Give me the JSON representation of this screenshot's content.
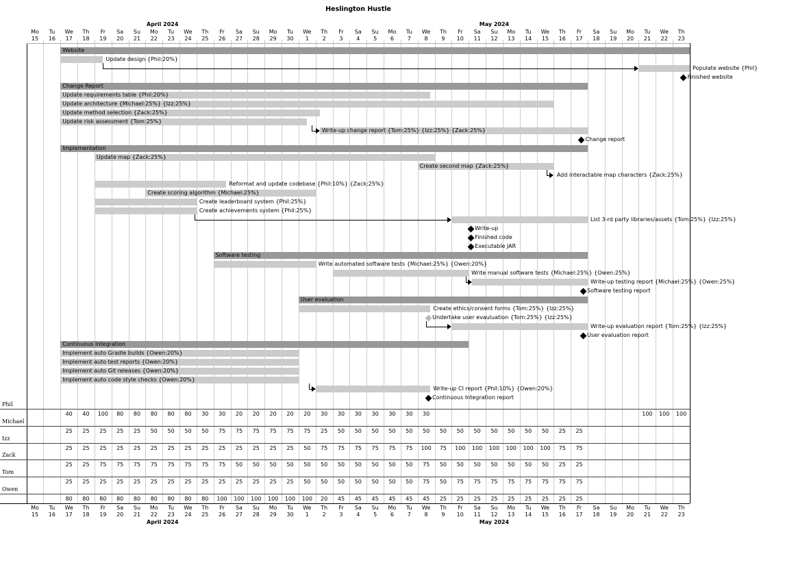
{
  "title": "Heslington Hustle",
  "months": {
    "april": "April 2024",
    "may": "May 2024"
  },
  "colors": {
    "summary_bar": "#989898",
    "task_bar": "#cbcbcb",
    "milestone": "#000000",
    "gray_milestone": "#b9b9b9",
    "grid_line": "#cccccc",
    "frame": "#000000",
    "header_top_rule": "#aaaaaa",
    "name_rule": "#444444"
  },
  "chart_data": {
    "type": "gantt",
    "title": "Heslington Hustle",
    "april_label": "April 2024",
    "may_label": "May 2024",
    "days": [
      {
        "d": "Mo",
        "n": "15"
      },
      {
        "d": "Tu",
        "n": "16"
      },
      {
        "d": "We",
        "n": "17"
      },
      {
        "d": "Th",
        "n": "18"
      },
      {
        "d": "Fr",
        "n": "19"
      },
      {
        "d": "Sa",
        "n": "20"
      },
      {
        "d": "Su",
        "n": "21"
      },
      {
        "d": "Mo",
        "n": "22"
      },
      {
        "d": "Tu",
        "n": "23"
      },
      {
        "d": "We",
        "n": "24"
      },
      {
        "d": "Th",
        "n": "25"
      },
      {
        "d": "Fr",
        "n": "26"
      },
      {
        "d": "Sa",
        "n": "27"
      },
      {
        "d": "Su",
        "n": "28"
      },
      {
        "d": "Mo",
        "n": "29"
      },
      {
        "d": "Tu",
        "n": "30"
      },
      {
        "d": "We",
        "n": "1"
      },
      {
        "d": "Th",
        "n": "2"
      },
      {
        "d": "Fr",
        "n": "3"
      },
      {
        "d": "Sa",
        "n": "4"
      },
      {
        "d": "Su",
        "n": "5"
      },
      {
        "d": "Mo",
        "n": "6"
      },
      {
        "d": "Tu",
        "n": "7"
      },
      {
        "d": "We",
        "n": "8"
      },
      {
        "d": "Th",
        "n": "9"
      },
      {
        "d": "Fr",
        "n": "10"
      },
      {
        "d": "Sa",
        "n": "11"
      },
      {
        "d": "Su",
        "n": "12"
      },
      {
        "d": "Mo",
        "n": "13"
      },
      {
        "d": "Tu",
        "n": "14"
      },
      {
        "d": "We",
        "n": "15"
      },
      {
        "d": "Th",
        "n": "16"
      },
      {
        "d": "Fr",
        "n": "17"
      },
      {
        "d": "Sa",
        "n": "18"
      },
      {
        "d": "Su",
        "n": "19"
      },
      {
        "d": "Mo",
        "n": "20"
      },
      {
        "d": "Tu",
        "n": "21"
      },
      {
        "d": "We",
        "n": "22"
      },
      {
        "d": "Th",
        "n": "23"
      }
    ],
    "rows": [
      {
        "t": "sum",
        "s": 2,
        "e": 39,
        "label": "Website",
        "lp": "in"
      },
      {
        "t": "task",
        "s": 2,
        "e": 4.5,
        "label": "Update design {Phil:20%}",
        "lp": "right"
      },
      {
        "t": "task",
        "s": 36,
        "e": 39,
        "label": "Populate website {Phil}",
        "lp": "right",
        "conn": [
          4.5,
          36
        ]
      },
      {
        "t": "ms",
        "m": 38.5,
        "label": "Finished website"
      },
      {
        "t": "sum",
        "s": 2,
        "e": 33,
        "label": "Change Report",
        "lp": "in"
      },
      {
        "t": "task",
        "s": 2,
        "e": 23.75,
        "label": "Update requirements table {Phil:20%}",
        "lp": "in"
      },
      {
        "t": "task",
        "s": 2,
        "e": 31,
        "label": "Update architecture {Michael:25%} {Izz:25%}",
        "lp": "in"
      },
      {
        "t": "task",
        "s": 2,
        "e": 17.25,
        "label": "Update method selection {Zack:25%}",
        "lp": "in"
      },
      {
        "t": "task",
        "s": 2,
        "e": 16.5,
        "label": "Update risk assessment {Tom:25%}",
        "lp": "in"
      },
      {
        "t": "task",
        "s": 17.25,
        "e": 33,
        "label": "Write-up change report {Tom:25%} {Izz:25%} {Zack:25%}",
        "lp": "in",
        "conn": [
          16.75,
          17.25
        ]
      },
      {
        "t": "ms",
        "m": 32.5,
        "label": "Change report"
      },
      {
        "t": "sum",
        "s": 2,
        "e": 33,
        "label": "Implementation",
        "lp": "in"
      },
      {
        "t": "task",
        "s": 4,
        "e": 24,
        "label": "Update map {Zack:25%}",
        "lp": "in"
      },
      {
        "t": "task",
        "s": 23,
        "e": 31,
        "label": "Create second map {Zack:25%}",
        "lp": "in"
      },
      {
        "t": "note",
        "m": 31.1,
        "label": "Add interactable map characters {Zack:25%}",
        "conn": [
          30.6,
          31
        ]
      },
      {
        "t": "task",
        "s": 4,
        "e": 11.75,
        "label": "Reformat and update codebase {Phil:10%} {Zack:25%}",
        "lp": "right"
      },
      {
        "t": "task",
        "s": 7,
        "e": 17,
        "label": "Create scoring algorithm {Michael:25%}",
        "lp": "in"
      },
      {
        "t": "task",
        "s": 4,
        "e": 10,
        "label": "Create leaderboard system {Phil:25%}",
        "lp": "right"
      },
      {
        "t": "task",
        "s": 4,
        "e": 10,
        "label": "Create achievements system {Phil:25%}",
        "lp": "right"
      },
      {
        "t": "task",
        "s": 25,
        "e": 33,
        "label": "List 3-rd party libraries/assets {Tom:25%} {Izz:25%}",
        "lp": "right",
        "conn": [
          9.9,
          25
        ]
      },
      {
        "t": "ms",
        "m": 26,
        "label": "Write-up"
      },
      {
        "t": "ms",
        "m": 26,
        "label": "Finished code"
      },
      {
        "t": "ms",
        "m": 26,
        "label": "Executable JAR"
      },
      {
        "t": "sum",
        "s": 11,
        "e": 33,
        "label": "Software testing",
        "lp": "in"
      },
      {
        "t": "task",
        "s": 11,
        "e": 17,
        "label": "Write automated software tests {Michael:25%} {Owen:20%}",
        "lp": "right"
      },
      {
        "t": "task",
        "s": 18,
        "e": 26,
        "label": "Write manual software tests {Michael:25%} {Owen:25%}",
        "lp": "right"
      },
      {
        "t": "task",
        "s": 26.2,
        "e": 33,
        "label": "Write-up testing report {Michael:25%} {Owen:25%}",
        "lp": "right",
        "conn": [
          25.85,
          26.2
        ]
      },
      {
        "t": "ms",
        "m": 32.6,
        "label": "Software testing report"
      },
      {
        "t": "sum",
        "s": 16,
        "e": 33,
        "label": "User evaluation",
        "lp": "in"
      },
      {
        "t": "task",
        "s": 16,
        "e": 23.75,
        "label": "Create ethics/consent forms {Tom:25%} {Izz:25%}",
        "lp": "right"
      },
      {
        "t": "ms",
        "m": 23.5,
        "label": "Undertake user evauluation {Tom:25%} {Izz:25%}",
        "gray": true
      },
      {
        "t": "task",
        "s": 25,
        "e": 33,
        "label": "Write-up evaluation report {Tom:25%} {Izz:25%}",
        "lp": "right",
        "conn": [
          23.5,
          25
        ]
      },
      {
        "t": "ms",
        "m": 32.6,
        "label": "User evaluation report"
      },
      {
        "t": "sum",
        "s": 2,
        "e": 26,
        "label": "Continuous Integration",
        "lp": "in"
      },
      {
        "t": "task",
        "s": 2,
        "e": 16,
        "label": "Implement auto Gradle builds {Owen:20%}",
        "lp": "in"
      },
      {
        "t": "task",
        "s": 2,
        "e": 16,
        "label": "Implement auto test reports {Owen:20%}",
        "lp": "in"
      },
      {
        "t": "task",
        "s": 2,
        "e": 16,
        "label": "Implement auto Git releases {Owen:20%}",
        "lp": "in"
      },
      {
        "t": "task",
        "s": 2,
        "e": 16,
        "label": "Implement auto code style checks {Owen:20%}",
        "lp": "in"
      },
      {
        "t": "task",
        "s": 17,
        "e": 23.75,
        "label": "Write-up CI report {Phil:10%} {Owen:20%}",
        "lp": "right",
        "conn": [
          16.6,
          17
        ]
      },
      {
        "t": "ms",
        "m": 23.5,
        "label": "Continuous Integration report"
      }
    ],
    "resources": [
      {
        "name": "Phil",
        "values": [
          "",
          "",
          "40",
          "40",
          "100",
          "80",
          "80",
          "80",
          "80",
          "80",
          "30",
          "30",
          "20",
          "20",
          "20",
          "20",
          "20",
          "30",
          "30",
          "30",
          "30",
          "30",
          "30",
          "30",
          "",
          "",
          "",
          "",
          "",
          "",
          "",
          "",
          "",
          "",
          "",
          "",
          "100",
          "100",
          "100"
        ]
      },
      {
        "name": "Michael",
        "values": [
          "",
          "",
          "25",
          "25",
          "25",
          "25",
          "25",
          "50",
          "50",
          "50",
          "50",
          "75",
          "75",
          "75",
          "75",
          "75",
          "75",
          "25",
          "50",
          "50",
          "50",
          "50",
          "50",
          "50",
          "50",
          "50",
          "50",
          "50",
          "50",
          "50",
          "50",
          "25",
          "25",
          "",
          "",
          "",
          "",
          "",
          ""
        ]
      },
      {
        "name": "Izz",
        "values": [
          "",
          "",
          "25",
          "25",
          "25",
          "25",
          "25",
          "25",
          "25",
          "25",
          "25",
          "25",
          "25",
          "25",
          "25",
          "25",
          "50",
          "75",
          "75",
          "75",
          "75",
          "75",
          "75",
          "100",
          "75",
          "100",
          "100",
          "100",
          "100",
          "100",
          "100",
          "75",
          "75",
          "",
          "",
          "",
          "",
          "",
          ""
        ]
      },
      {
        "name": "Zack",
        "values": [
          "",
          "",
          "25",
          "25",
          "75",
          "75",
          "75",
          "75",
          "75",
          "75",
          "75",
          "75",
          "50",
          "50",
          "50",
          "50",
          "50",
          "50",
          "50",
          "50",
          "50",
          "50",
          "50",
          "75",
          "50",
          "50",
          "50",
          "50",
          "50",
          "50",
          "50",
          "25",
          "25",
          "",
          "",
          "",
          "",
          "",
          ""
        ]
      },
      {
        "name": "Tom",
        "values": [
          "",
          "",
          "25",
          "25",
          "25",
          "25",
          "25",
          "25",
          "25",
          "25",
          "25",
          "25",
          "25",
          "25",
          "25",
          "25",
          "50",
          "50",
          "50",
          "50",
          "50",
          "50",
          "50",
          "75",
          "50",
          "75",
          "75",
          "75",
          "75",
          "75",
          "75",
          "75",
          "75",
          "",
          "",
          "",
          "",
          "",
          ""
        ]
      },
      {
        "name": "Owen",
        "values": [
          "",
          "",
          "80",
          "80",
          "80",
          "80",
          "80",
          "80",
          "80",
          "80",
          "80",
          "100",
          "100",
          "100",
          "100",
          "100",
          "100",
          "20",
          "45",
          "45",
          "45",
          "45",
          "45",
          "45",
          "25",
          "25",
          "25",
          "25",
          "25",
          "25",
          "25",
          "25",
          "25",
          "",
          "",
          "",
          "",
          "",
          ""
        ]
      }
    ]
  }
}
